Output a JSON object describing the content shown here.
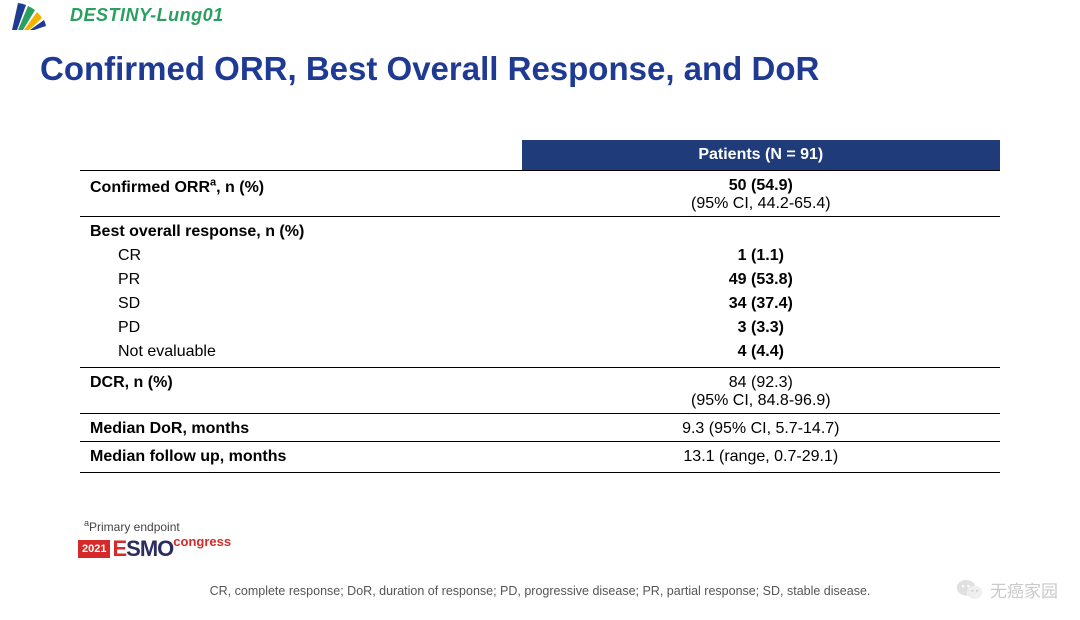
{
  "colors": {
    "title": "#1f3a93",
    "study_label": "#2aa060",
    "table_header_bg": "#1f3b7a",
    "table_header_text": "#ffffff",
    "border": "#000000",
    "footnote": "#444444",
    "abbr": "#555555",
    "esmo_red": "#d62a2a",
    "esmo_dark": "#2c2c5e",
    "wechat": "#888888",
    "logo_blue": "#1f3a93",
    "logo_green": "#2aa060",
    "logo_yellow": "#f2b200"
  },
  "header": {
    "study": "DESTINY-Lung01",
    "title": "Confirmed ORR, Best Overall Response, and DoR"
  },
  "table": {
    "type": "table",
    "column_header": "Patients (N = 91)",
    "rows": [
      {
        "section": true,
        "label": "Confirmed ORRᵃ, n (%)",
        "value_bold": "50 (54.9)",
        "value_sub": "(95% CI, 44.2-65.4)"
      },
      {
        "section": true,
        "label": "Best overall response, n (%)",
        "value_bold": "",
        "value_sub": ""
      },
      {
        "label_indent": "CR",
        "value_bold": "1 (1.1)"
      },
      {
        "label_indent": "PR",
        "value_bold": "49 (53.8)"
      },
      {
        "label_indent": "SD",
        "value_bold": "34 (37.4)"
      },
      {
        "label_indent": "PD",
        "value_bold": "3 (3.3)"
      },
      {
        "label_indent": "Not evaluable",
        "value_bold": "4 (4.4)",
        "section_end": true
      },
      {
        "section": true,
        "label": "DCR, n (%)",
        "value_plain": "84 (92.3)",
        "value_sub": "(95% CI, 84.8-96.9)"
      },
      {
        "section": true,
        "label": "Median DoR, months",
        "value_plain": "9.3 (95% CI, 5.7-14.7)"
      },
      {
        "section": true,
        "last": true,
        "label": "Median follow up, months",
        "value_plain": "13.1 (range, 0.7-29.1)"
      }
    ]
  },
  "footnote": {
    "marker": "a",
    "text": "Primary endpoint"
  },
  "esmo": {
    "year": "2021",
    "prefix": "E",
    "rest": "SMO",
    "suffix": "congress"
  },
  "abbreviations": "CR, complete response; DoR, duration of response; PD, progressive disease; PR, partial response; SD, stable disease.",
  "watermark": "无癌家园"
}
